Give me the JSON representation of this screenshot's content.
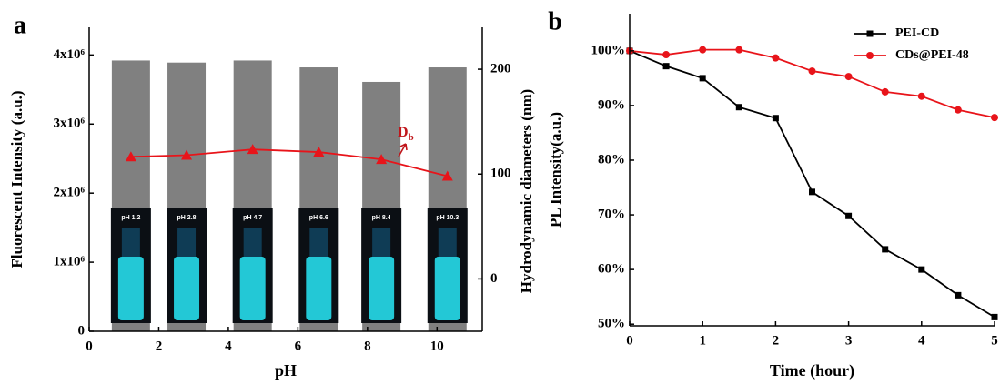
{
  "chart_data": [
    {
      "type": "bar",
      "panel_label": "a",
      "x_label": "pH",
      "y_label": "Fluorescent Intensity (a.u.)",
      "y2_label": "Hydrodynamic diameters (nm)",
      "x": [
        1.2,
        2.8,
        4.7,
        6.6,
        8.4,
        10.3
      ],
      "series": [
        {
          "type": "bar",
          "color": "#808080",
          "values": [
            3920000,
            3890000,
            3920000,
            3820000,
            3610000,
            3820000
          ]
        },
        {
          "type": "line",
          "axis": "y2",
          "marker": "triangle",
          "color": "#e8141a",
          "values": [
            116.5,
            118,
            123.5,
            121,
            114,
            98
          ]
        }
      ],
      "insets": [
        "pH 1.2",
        "pH 2.8",
        "pH 4.7",
        "pH 6.6",
        "pH 8.4",
        "pH 10.3"
      ],
      "annotation": {
        "text": "D",
        "subscript": "b"
      },
      "xlim": [
        0,
        11.3
      ],
      "xticks": [
        0,
        2,
        4,
        6,
        8,
        10
      ],
      "ylim": [
        0,
        4400000
      ],
      "yticks": [
        0,
        {
          "value": 1000000,
          "label": "1x10⁶"
        },
        {
          "value": 2000000,
          "label": "2x10⁶"
        },
        {
          "value": 3000000,
          "label": "3x10⁶"
        },
        {
          "value": 4000000,
          "label": "4x10⁶"
        }
      ],
      "y2lim": [
        -50,
        240
      ],
      "y2ticks": [
        0,
        100,
        200
      ]
    },
    {
      "type": "line",
      "panel_label": "b",
      "x_label": "Time (hour)",
      "y_label": "PL Intensity(a.u.)",
      "x": [
        0,
        0.5,
        1,
        1.5,
        2,
        2.5,
        3,
        3.5,
        4,
        4.5,
        5
      ],
      "series": [
        {
          "name": "PEI-CD",
          "marker": "square",
          "color": "#000000",
          "values": [
            100,
            97.2,
            95,
            89.7,
            87.7,
            74.2,
            69.8,
            63.7,
            60,
            55.3,
            51.3
          ]
        },
        {
          "name": "CDs@PEI-48",
          "marker": "circle",
          "color": "#e8141a",
          "values": [
            100,
            99.3,
            100.2,
            100.2,
            98.7,
            96.3,
            95.3,
            92.5,
            91.7,
            89.2,
            87.8
          ]
        }
      ],
      "legend": "upper right",
      "xlim": [
        0,
        5
      ],
      "xticks": [
        0,
        1,
        2,
        3,
        4,
        5
      ],
      "ylim": [
        49.7,
        106.8
      ],
      "yticks": [
        {
          "value": 50,
          "label": "50%"
        },
        {
          "value": 60,
          "label": "60%"
        },
        {
          "value": 70,
          "label": "70%"
        },
        {
          "value": 80,
          "label": "80%"
        },
        {
          "value": 90,
          "label": "90%"
        },
        {
          "value": 100,
          "label": "100%"
        }
      ]
    }
  ]
}
